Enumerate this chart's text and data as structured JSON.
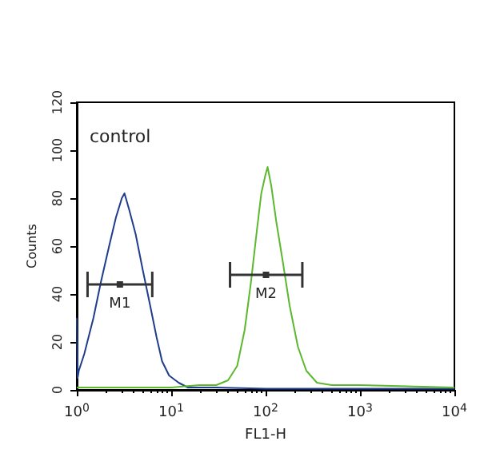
{
  "chart_data": {
    "type": "line",
    "xlabel": "FL1-H",
    "ylabel": "Counts",
    "log": "x",
    "xlim": [
      1,
      10000
    ],
    "xticks": [
      {
        "value": 1,
        "label": "10$^{0}$"
      },
      {
        "value": 10,
        "label": "10$^{1}$"
      },
      {
        "value": 100,
        "label": "10$^{2}$"
      },
      {
        "value": 1000,
        "label": "10$^{3}$"
      },
      {
        "value": 10000,
        "label": "10$^{4}$"
      }
    ],
    "ylim": [
      0,
      120
    ],
    "yticks": [
      0,
      20,
      40,
      60,
      80,
      100,
      120
    ],
    "grid": false,
    "marker": "none",
    "annotations": [
      "control"
    ],
    "series": [
      {
        "type": "scatter",
        "marker": "square",
        "color": "#333333",
        "x": [
          2.86,
          101
        ],
        "values": [
          44,
          48
        ],
        "xerrors": [
          [
            1.3,
            6.3
          ],
          [
            42,
            245
          ]
        ],
        "value_labels": [
          "M1",
          "M2"
        ]
      },
      {
        "color": "#1f3d8c",
        "x": [
          1,
          1.02,
          1.05,
          1.2,
          1.5,
          1.8,
          2.2,
          2.6,
          3.0,
          3.2,
          3.6,
          4.2,
          5,
          6,
          7,
          8,
          9.5,
          12,
          15,
          30,
          100,
          1000,
          10000
        ],
        "values": [
          30,
          5,
          8,
          15,
          30,
          45,
          60,
          72,
          80,
          82,
          75,
          65,
          50,
          35,
          22,
          12,
          6,
          3,
          1,
          1,
          0.5,
          0.5,
          0.5
        ]
      },
      {
        "color": "#5cb82e",
        "x": [
          1,
          10,
          20,
          30,
          40,
          50,
          60,
          70,
          80,
          90,
          100,
          105,
          115,
          130,
          150,
          180,
          220,
          270,
          350,
          500,
          1000,
          10000
        ],
        "values": [
          1,
          1,
          2,
          2,
          4,
          10,
          25,
          45,
          65,
          82,
          90,
          93,
          85,
          70,
          55,
          35,
          18,
          8,
          3,
          2,
          2,
          1
        ]
      }
    ]
  }
}
